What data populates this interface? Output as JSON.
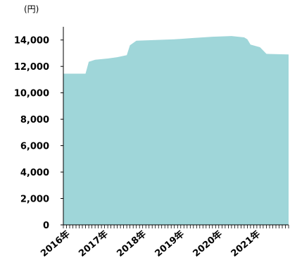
{
  "chart_data": {
    "type": "area",
    "unit_label": "(円)",
    "colors": {
      "area": "#9fd6d9",
      "axis": "#000000"
    },
    "y_ticks": [
      0,
      2000,
      4000,
      6000,
      8000,
      10000,
      12000,
      14000
    ],
    "y_tick_labels": [
      "0",
      "2,000",
      "4,000",
      "6,000",
      "8,000",
      "10,000",
      "12,000",
      "14,000"
    ],
    "ylim": [
      0,
      15000
    ],
    "xlim": [
      "2016-01",
      "2021-12"
    ],
    "x_ticks": [
      "2016-01",
      "2017-01",
      "2018-01",
      "2019-01",
      "2020-01",
      "2021-01"
    ],
    "x_tick_labels": [
      "2016年",
      "2017年",
      "2018年",
      "2019年",
      "2020年",
      "2021年"
    ],
    "series": [
      {
        "points": [
          [
            "2016-01",
            11450
          ],
          [
            "2016-08",
            11450
          ],
          [
            "2016-09",
            12350
          ],
          [
            "2016-11",
            12500
          ],
          [
            "2017-03",
            12600
          ],
          [
            "2017-06",
            12700
          ],
          [
            "2017-09",
            12850
          ],
          [
            "2017-10",
            13600
          ],
          [
            "2017-12",
            13950
          ],
          [
            "2018-06",
            14000
          ],
          [
            "2018-12",
            14050
          ],
          [
            "2019-06",
            14150
          ],
          [
            "2019-12",
            14250
          ],
          [
            "2020-06",
            14300
          ],
          [
            "2020-10",
            14200
          ],
          [
            "2020-11",
            14050
          ],
          [
            "2020-12",
            13650
          ],
          [
            "2021-03",
            13450
          ],
          [
            "2021-05",
            12950
          ],
          [
            "2021-12",
            12900
          ]
        ]
      }
    ]
  }
}
